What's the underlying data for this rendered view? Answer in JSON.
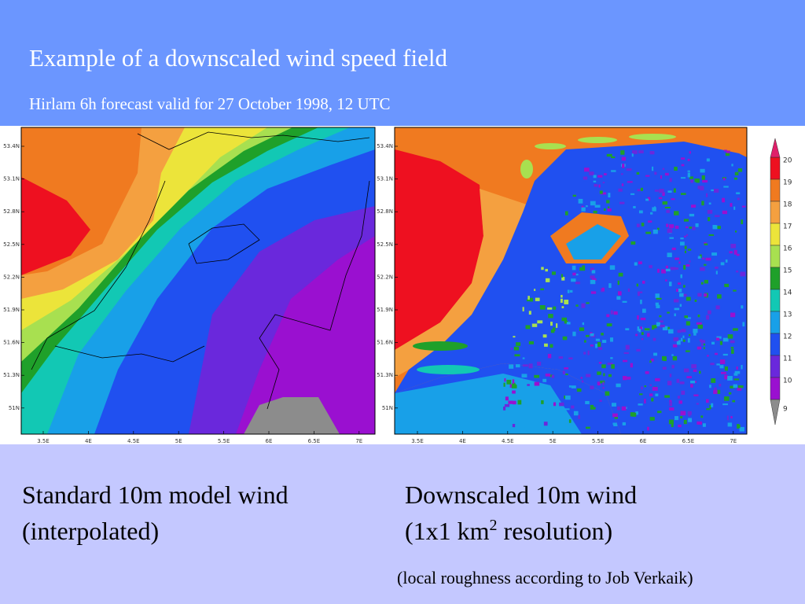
{
  "header": {
    "title": "Example of a downscaled wind speed field",
    "subtitle": "Hirlam 6h forecast valid for 27 October 1998, 12 UTC"
  },
  "maps": {
    "lat_ticks": [
      "53.4N",
      "53.1N",
      "52.8N",
      "52.5N",
      "52.2N",
      "51.9N",
      "51.6N",
      "51.3N",
      "51N"
    ],
    "lon_ticks": [
      "3.5E",
      "4E",
      "4.5E",
      "5E",
      "5.5E",
      "6E",
      "6.5E",
      "7E"
    ]
  },
  "legend": {
    "levels": [
      20,
      19,
      18,
      17,
      16,
      15,
      14,
      13,
      12,
      11,
      10,
      9
    ],
    "colors": [
      "#ee1020",
      "#f07a20",
      "#f4a040",
      "#ece43a",
      "#a8e050",
      "#1fa02a",
      "#12c8b4",
      "#18a0e8",
      "#2050f0",
      "#6a28dc",
      "#9a10d0",
      "#8c8c8c"
    ]
  },
  "captions": {
    "left": {
      "line1": "Standard 10m model wind",
      "line2": "(interpolated)"
    },
    "right": {
      "line1": "Downscaled 10m wind",
      "line2": {
        "before": "(1x1 km",
        "superscript": "2",
        "after": " resolution)"
      }
    },
    "note": "(local roughness according to Job Verkaik)"
  }
}
